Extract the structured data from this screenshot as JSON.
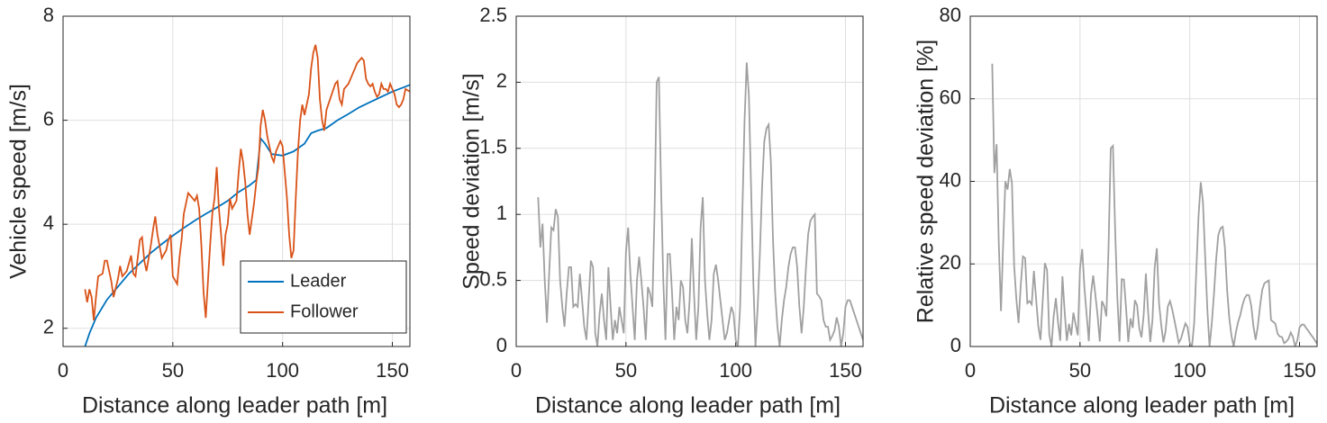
{
  "chart_data": [
    {
      "type": "line",
      "xlabel": "Distance along leader path [m]",
      "ylabel": "Vehicle speed [m/s]",
      "xlim": [
        0,
        158
      ],
      "ylim": [
        1.65,
        8
      ],
      "xticks": [
        0,
        50,
        100,
        150
      ],
      "yticks": [
        2,
        4,
        6,
        8
      ],
      "grid": true,
      "legend": "lower right",
      "series": [
        {
          "name": "Leader",
          "color": "#0072BD",
          "x": [
            10,
            12,
            15,
            20,
            25,
            30,
            35,
            40,
            45,
            50,
            55,
            60,
            65,
            70,
            75,
            80,
            85,
            88,
            90,
            92,
            95,
            100,
            105,
            110,
            113,
            116,
            120,
            125,
            130,
            135,
            140,
            145,
            150,
            155,
            158
          ],
          "values": [
            1.65,
            1.9,
            2.2,
            2.55,
            2.8,
            3.05,
            3.25,
            3.45,
            3.62,
            3.78,
            3.93,
            4.07,
            4.2,
            4.32,
            4.45,
            4.62,
            4.75,
            4.85,
            5.65,
            5.55,
            5.35,
            5.32,
            5.4,
            5.55,
            5.75,
            5.8,
            5.85,
            6.0,
            6.12,
            6.25,
            6.35,
            6.45,
            6.55,
            6.63,
            6.68
          ]
        },
        {
          "name": "Follower",
          "color": "#D95319",
          "x": [
            10,
            11,
            12,
            13,
            14,
            15,
            16,
            18,
            19,
            20,
            22,
            23,
            25,
            26,
            27,
            29,
            31,
            32,
            33,
            35,
            36,
            37,
            38,
            40,
            41,
            42,
            43,
            45,
            47,
            48,
            49,
            50,
            52,
            53,
            54,
            55,
            56,
            57,
            58,
            59,
            60,
            61,
            62,
            63,
            64,
            65,
            66,
            67,
            68,
            69,
            70,
            71,
            72,
            73,
            74,
            75,
            76,
            77,
            79,
            80,
            81,
            82,
            83,
            84,
            85,
            86,
            87,
            88,
            89,
            90,
            91,
            92,
            93,
            94,
            95,
            96,
            97,
            98,
            99,
            100,
            101,
            102,
            103,
            104,
            105,
            106,
            107,
            108,
            109,
            110,
            112,
            113,
            114,
            115,
            116,
            117,
            118,
            119,
            120,
            122,
            124,
            125,
            126,
            127,
            128,
            130,
            132,
            134,
            136,
            137,
            138,
            139,
            140,
            141,
            142,
            143,
            144,
            145,
            146,
            147,
            148,
            149,
            150,
            151,
            152,
            153,
            154,
            155,
            156,
            158
          ],
          "values": [
            2.75,
            2.5,
            2.75,
            2.6,
            2.15,
            2.6,
            3.0,
            3.05,
            3.3,
            3.3,
            2.9,
            2.6,
            2.95,
            3.2,
            3.0,
            3.1,
            3.4,
            3.05,
            3.0,
            3.7,
            3.75,
            3.3,
            3.1,
            3.6,
            3.9,
            4.15,
            3.8,
            3.35,
            3.5,
            3.7,
            3.8,
            3.0,
            2.85,
            3.35,
            3.7,
            4.2,
            4.4,
            4.6,
            4.55,
            4.5,
            4.45,
            4.55,
            4.3,
            3.6,
            2.7,
            2.2,
            2.9,
            3.6,
            4.2,
            4.5,
            5.1,
            4.3,
            3.8,
            3.2,
            3.8,
            4.0,
            4.5,
            4.3,
            4.45,
            5.0,
            5.45,
            5.2,
            4.8,
            4.2,
            3.8,
            4.1,
            4.4,
            4.8,
            5.1,
            5.9,
            6.2,
            6.0,
            5.7,
            5.5,
            5.3,
            5.2,
            5.4,
            5.5,
            5.6,
            5.5,
            5.0,
            4.5,
            3.8,
            3.35,
            3.5,
            4.5,
            5.4,
            6.0,
            6.3,
            6.1,
            6.5,
            7.0,
            7.3,
            7.45,
            7.2,
            6.4,
            6.0,
            5.8,
            6.2,
            6.45,
            6.7,
            6.75,
            6.4,
            6.3,
            6.6,
            6.7,
            6.9,
            7.1,
            7.2,
            7.15,
            6.8,
            6.7,
            6.65,
            6.7,
            6.55,
            6.45,
            6.5,
            6.7,
            6.6,
            6.6,
            6.55,
            6.7,
            6.6,
            6.5,
            6.3,
            6.25,
            6.3,
            6.4,
            6.6,
            6.55
          ]
        }
      ]
    },
    {
      "type": "line",
      "xlabel": "Distance along leader path [m]",
      "ylabel": "Speed deviation [m/s]",
      "xlim": [
        0,
        158
      ],
      "ylim": [
        0,
        2.5
      ],
      "xticks": [
        0,
        50,
        100,
        150
      ],
      "yticks": [
        0,
        0.5,
        1,
        1.5,
        2,
        2.5
      ],
      "grid": true,
      "series": [
        {
          "color": "#a0a0a0",
          "x": [
            10,
            11,
            12,
            13,
            14,
            15,
            16,
            17,
            18,
            19,
            20,
            21,
            22,
            23,
            24,
            25,
            26,
            27,
            28,
            29,
            30,
            31,
            32,
            33,
            34,
            35,
            36,
            37,
            38,
            39,
            40,
            41,
            42,
            43,
            44,
            45,
            46,
            47,
            48,
            49,
            50,
            51,
            52,
            53,
            54,
            55,
            56,
            57,
            58,
            59,
            60,
            61,
            62,
            63,
            64,
            65,
            66,
            67,
            68,
            69,
            70,
            71,
            72,
            73,
            74,
            75,
            76,
            77,
            78,
            79,
            80,
            81,
            82,
            83,
            84,
            85,
            86,
            87,
            88,
            89,
            90,
            91,
            92,
            93,
            94,
            95,
            96,
            97,
            98,
            99,
            100,
            101,
            102,
            103,
            104,
            105,
            106,
            107,
            108,
            109,
            110,
            111,
            112,
            113,
            114,
            115,
            116,
            117,
            118,
            119,
            120,
            121,
            122,
            123,
            124,
            125,
            126,
            127,
            128,
            129,
            130,
            131,
            132,
            133,
            134,
            135,
            136,
            137,
            138,
            139,
            140,
            141,
            142,
            143,
            144,
            145,
            146,
            147,
            148,
            149,
            150,
            151,
            152,
            153,
            154,
            155,
            156,
            157,
            158
          ],
          "values": [
            1.13,
            0.75,
            0.93,
            0.5,
            0.18,
            0.55,
            0.9,
            0.88,
            1.04,
            0.98,
            0.5,
            0.3,
            0.15,
            0.4,
            0.6,
            0.6,
            0.3,
            0.32,
            0.3,
            0.55,
            0.35,
            0.15,
            0.05,
            0.35,
            0.65,
            0.6,
            0.1,
            0,
            0.25,
            0.4,
            0.2,
            0.05,
            0.6,
            0.3,
            0.05,
            0.2,
            0.1,
            0.3,
            0.2,
            0.1,
            0.72,
            0.9,
            0.55,
            0.3,
            0.05,
            0.5,
            0.68,
            0.5,
            0.3,
            0.05,
            0.45,
            0.4,
            0.3,
            1.0,
            2.0,
            2.04,
            1.2,
            0.5,
            0.05,
            0.7,
            0.7,
            0.4,
            0.05,
            0.3,
            0.2,
            0.5,
            0.45,
            0.2,
            0.1,
            0.35,
            0.82,
            0.4,
            0.05,
            0.3,
            0.9,
            1.13,
            0.5,
            0.25,
            0.05,
            0.2,
            0.55,
            0.62,
            0.5,
            0.35,
            0.2,
            0.05,
            0.1,
            0.2,
            0.3,
            0.25,
            0.05,
            0,
            0.3,
            1.0,
            1.7,
            2.15,
            1.9,
            1.2,
            0.5,
            0,
            0.3,
            0.7,
            1.2,
            1.55,
            1.65,
            1.68,
            1.4,
            0.8,
            0.4,
            0.15,
            0,
            0.2,
            0.35,
            0.45,
            0.6,
            0.7,
            0.75,
            0.75,
            0.6,
            0.3,
            0.1,
            0.3,
            0.6,
            0.85,
            0.95,
            0.98,
            1.0,
            0.4,
            0.38,
            0.35,
            0.2,
            0.15,
            0.15,
            0.05,
            0.08,
            0.12,
            0.22,
            0.15,
            0,
            0.1,
            0.3,
            0.35,
            0.35,
            0.3,
            0.25,
            0.2,
            0.15,
            0.1,
            0.05
          ]
        }
      ]
    },
    {
      "type": "line",
      "xlabel": "Distance along leader path [m]",
      "ylabel": "Relative speed deviation [%]",
      "xlim": [
        0,
        158
      ],
      "ylim": [
        0,
        80
      ],
      "xticks": [
        0,
        50,
        100,
        150
      ],
      "yticks": [
        0,
        20,
        40,
        60,
        80
      ],
      "grid": true,
      "series": [
        {
          "color": "#a0a0a0",
          "x": [
            10,
            11,
            12,
            13,
            14,
            15,
            16,
            17,
            18,
            19,
            20,
            21,
            22,
            23,
            24,
            25,
            26,
            27,
            28,
            29,
            30,
            31,
            32,
            33,
            34,
            35,
            36,
            37,
            38,
            39,
            40,
            41,
            42,
            43,
            44,
            45,
            46,
            47,
            48,
            49,
            50,
            51,
            52,
            53,
            54,
            55,
            56,
            57,
            58,
            59,
            60,
            61,
            62,
            63,
            64,
            65,
            66,
            67,
            68,
            69,
            70,
            71,
            72,
            73,
            74,
            75,
            76,
            77,
            78,
            79,
            80,
            81,
            82,
            83,
            84,
            85,
            86,
            87,
            88,
            89,
            90,
            91,
            92,
            93,
            94,
            95,
            96,
            97,
            98,
            99,
            100,
            101,
            102,
            103,
            104,
            105,
            106,
            107,
            108,
            109,
            110,
            111,
            112,
            113,
            114,
            115,
            116,
            117,
            118,
            119,
            120,
            121,
            122,
            123,
            124,
            125,
            126,
            127,
            128,
            129,
            130,
            131,
            132,
            133,
            134,
            135,
            136,
            137,
            138,
            139,
            140,
            141,
            142,
            143,
            144,
            145,
            146,
            147,
            148,
            149,
            150,
            151,
            152,
            153,
            154,
            155,
            156,
            157,
            158
          ],
          "values": [
            68.5,
            42,
            49,
            25,
            8.6,
            25,
            40,
            38,
            43,
            39.5,
            19.6,
            11.5,
            5.7,
            14.8,
            21.8,
            21.4,
            10.5,
            11,
            10.2,
            18.3,
            11.5,
            4.9,
            1.6,
            11,
            20.2,
            18.5,
            3,
            0,
            7.4,
            11.7,
            5.8,
            1.4,
            17,
            8.5,
            1.4,
            5.5,
            2.7,
            8.2,
            5.4,
            2.7,
            19,
            23.6,
            14.3,
            7.8,
            1.3,
            12.7,
            17.2,
            12.5,
            7.5,
            1.2,
            11,
            9.8,
            7.3,
            24,
            48,
            48.6,
            28.4,
            11.8,
            1.2,
            16.3,
            16.2,
            9.2,
            1.1,
            6.8,
            4.5,
            11.2,
            10,
            4.4,
            2.2,
            7.6,
            17.7,
            8.6,
            1.1,
            6.4,
            19,
            23.8,
            10.5,
            5.2,
            1,
            3.8,
            9.7,
            11,
            9,
            6.4,
            3.7,
            0.9,
            1.9,
            3.8,
            5.6,
            4.7,
            0.9,
            0,
            5.6,
            18.6,
            31.6,
            39.8,
            35,
            22,
            9.1,
            0,
            5.4,
            12.5,
            21,
            27,
            28.6,
            29,
            24,
            13.8,
            6.9,
            2.6,
            0,
            3.4,
            5.9,
            7.6,
            10,
            11.7,
            12.5,
            12.4,
            9.9,
            4.9,
            1.6,
            4.9,
            9.7,
            13.7,
            15.3,
            15.7,
            16,
            6.4,
            6,
            5.5,
            3.1,
            2.4,
            2.3,
            0.8,
            1.2,
            1.9,
            3.4,
            2.3,
            0,
            1.5,
            4.6,
            5.3,
            5.3,
            4.5,
            3.8,
            3,
            2.3,
            1.5,
            0.7
          ]
        }
      ]
    }
  ]
}
